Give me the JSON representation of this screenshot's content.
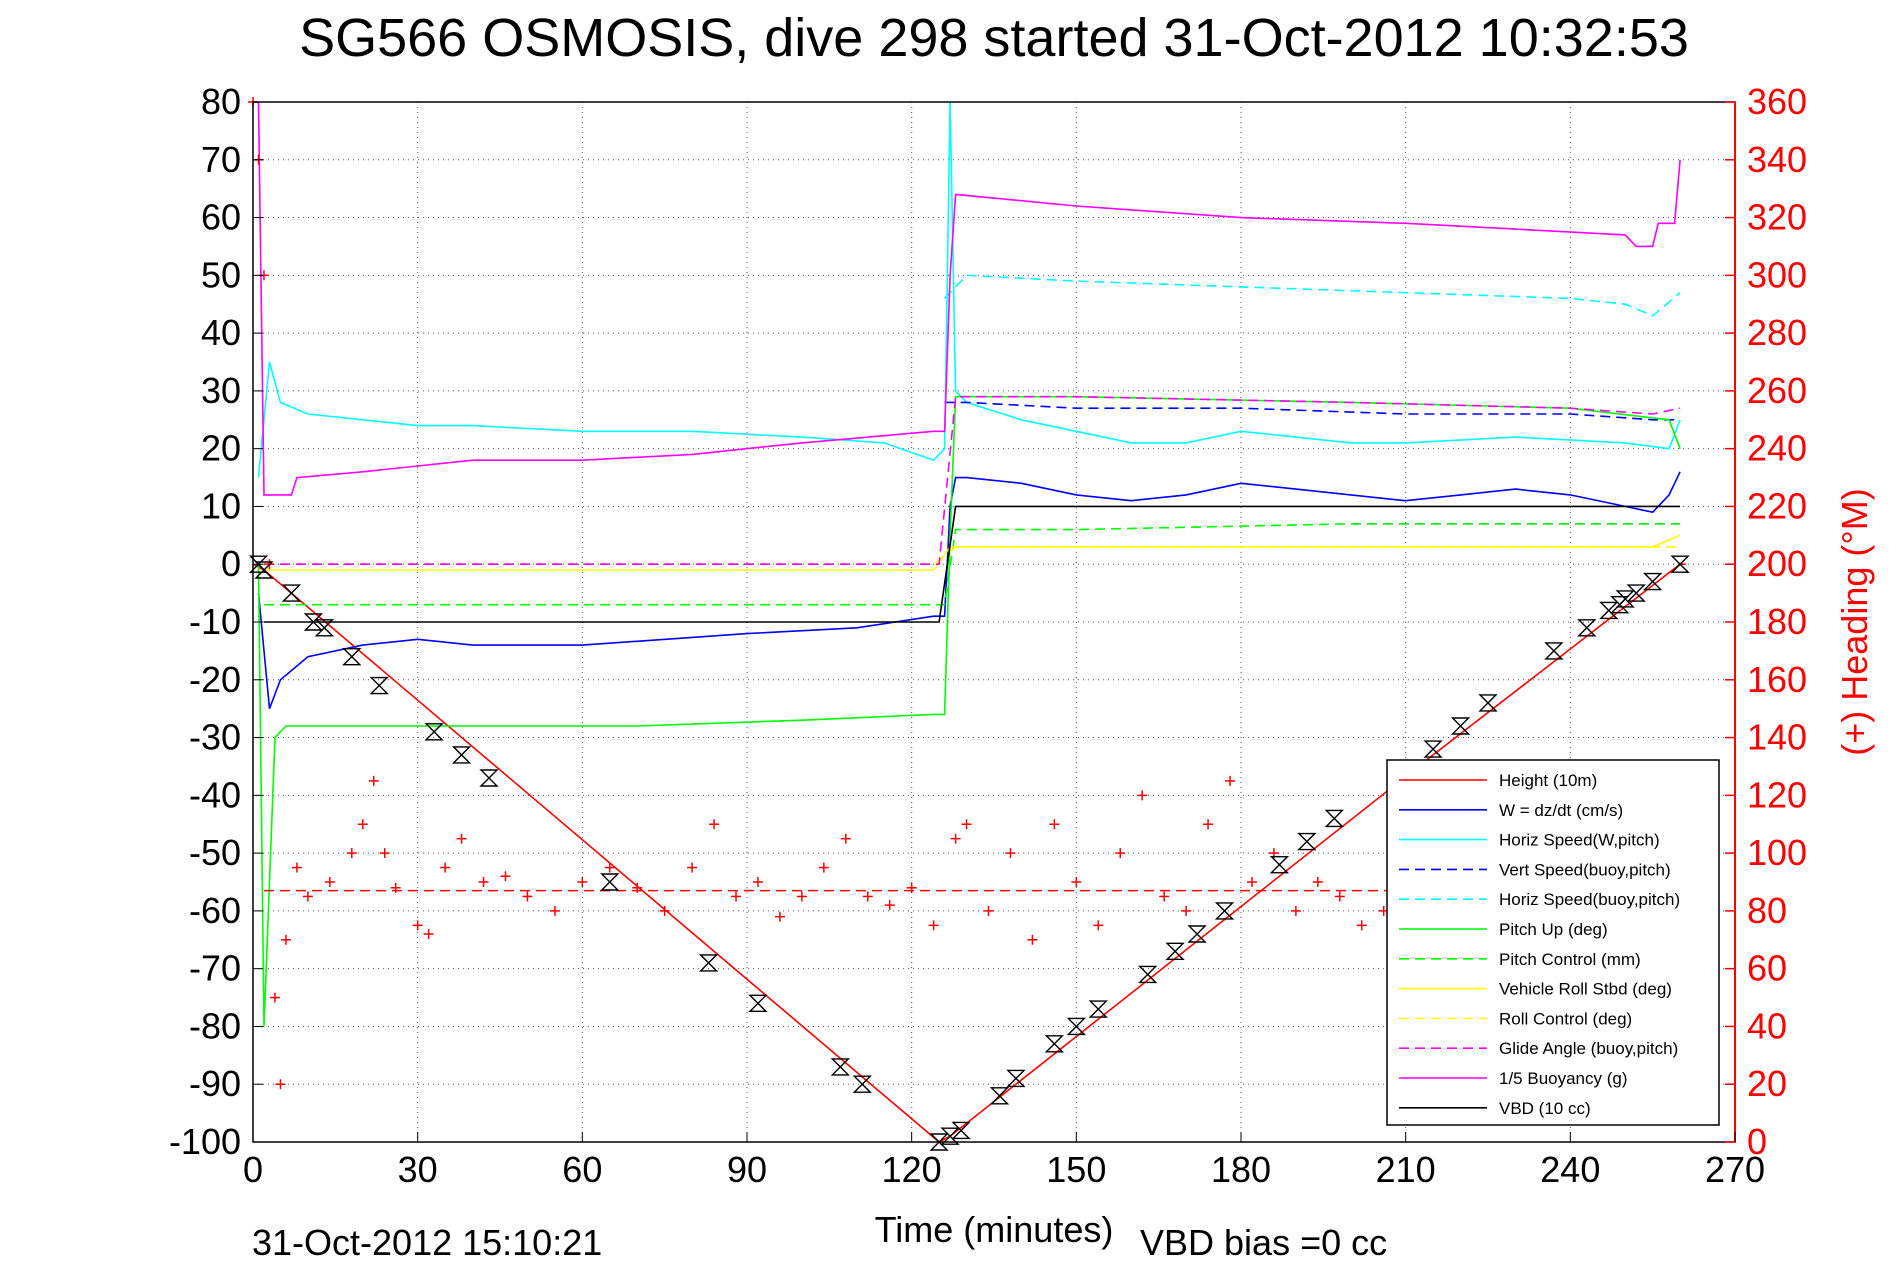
{
  "chart_data": {
    "type": "line",
    "title": "SG566 OSMOSIS, dive 298 started 31-Oct-2012 10:32:53",
    "xlabel": "Time (minutes)",
    "ylabel": "",
    "y2label": "(+) Heading (°M)",
    "footer_left": "31-Oct-2012 15:10:21",
    "footer_right": "VBD bias =0 cc",
    "xlim": [
      0,
      270
    ],
    "ylim": [
      -100,
      80
    ],
    "y2lim": [
      0,
      360
    ],
    "xticks": [
      0,
      30,
      60,
      90,
      120,
      150,
      180,
      210,
      240,
      270
    ],
    "yticks": [
      80,
      70,
      60,
      50,
      40,
      30,
      20,
      10,
      0,
      -10,
      -20,
      -30,
      -40,
      -50,
      -60,
      -70,
      -80,
      -90,
      -100
    ],
    "y2ticks": [
      360,
      340,
      320,
      300,
      280,
      260,
      240,
      220,
      200,
      180,
      160,
      140,
      120,
      100,
      80,
      60,
      40,
      20,
      0
    ],
    "grid": true,
    "legend_position": "bottom-right",
    "colors": {
      "height": "#ff0000",
      "w": "#0000ff",
      "horiz_speed": "#00ffff",
      "pitch": "#00ff00",
      "roll": "#ffff00",
      "glide": "#ff00ff",
      "buoyancy": "#ff00ff",
      "vbd": "#000000",
      "right_axis": "#ff0000"
    },
    "legend": [
      "Height (10m)",
      "W = dz/dt (cm/s)",
      "Horiz Speed(W,pitch)",
      "Vert Speed(buoy,pitch)",
      "Horiz Speed(buoy,pitch)",
      "Pitch Up (deg)",
      "Pitch Control (mm)",
      "Vehicle Roll Stbd (deg)",
      "Roll Control (deg)",
      "Glide Angle (buoy,pitch)",
      "1/5 Buoyancy (g)",
      "VBD (10 cc)"
    ],
    "series": [
      {
        "name": "Height (10m)",
        "style": "solid",
        "color": "#ff0000",
        "x": [
          0,
          2,
          125,
          127,
          215,
          260,
          261
        ],
        "y": [
          0,
          -1,
          -100,
          -99,
          -33,
          0,
          0
        ]
      },
      {
        "name": "W = dz/dt (cm/s)",
        "style": "solid",
        "color": "#0000ff",
        "x": [
          1,
          3,
          5,
          10,
          20,
          30,
          40,
          60,
          90,
          110,
          124,
          126,
          127,
          128,
          130,
          140,
          150,
          160,
          170,
          180,
          190,
          200,
          210,
          220,
          230,
          240,
          250,
          255,
          258,
          260
        ],
        "y": [
          -5,
          -25,
          -20,
          -16,
          -14,
          -13,
          -14,
          -14,
          -12,
          -11,
          -9,
          -9,
          10,
          15,
          15,
          14,
          12,
          11,
          12,
          14,
          13,
          12,
          11,
          12,
          13,
          12,
          10,
          9,
          12,
          16
        ]
      },
      {
        "name": "Horiz Speed(W,pitch)",
        "style": "solid",
        "color": "#00ffff",
        "x": [
          1,
          3,
          5,
          10,
          20,
          30,
          40,
          60,
          80,
          100,
          115,
          124,
          126,
          127,
          128,
          130,
          140,
          150,
          160,
          170,
          180,
          190,
          200,
          210,
          230,
          250,
          258,
          260
        ],
        "y": [
          15,
          35,
          28,
          26,
          25,
          24,
          24,
          23,
          23,
          22,
          21,
          18,
          20,
          80,
          30,
          28,
          25,
          23,
          21,
          21,
          23,
          22,
          21,
          21,
          22,
          21,
          20,
          25
        ]
      },
      {
        "name": "Vert Speed(buoy,pitch)",
        "style": "dashed",
        "color": "#0000ff",
        "x": [
          126,
          130,
          150,
          180,
          210,
          240,
          255,
          260
        ],
        "y": [
          28,
          28,
          27,
          27,
          26,
          26,
          25,
          25
        ]
      },
      {
        "name": "Horiz Speed(buoy,pitch)",
        "style": "dashed",
        "color": "#00ffff",
        "x": [
          126,
          130,
          150,
          180,
          210,
          240,
          250,
          255,
          260
        ],
        "y": [
          46,
          50,
          49,
          48,
          47,
          46,
          45,
          43,
          47
        ]
      },
      {
        "name": "Pitch Up (deg)",
        "style": "solid",
        "color": "#00ff00",
        "x": [
          1,
          2,
          4,
          6,
          10,
          20,
          40,
          70,
          100,
          124,
          126,
          127,
          128,
          150,
          200,
          240,
          258,
          260
        ],
        "y": [
          0,
          -80,
          -30,
          -28,
          -28,
          -28,
          -28,
          -28,
          -27,
          -26,
          -26,
          5,
          29,
          29,
          28,
          27,
          25,
          20
        ]
      },
      {
        "name": "Pitch Control (mm)",
        "style": "dashed",
        "color": "#00ff00",
        "x": [
          2,
          10,
          60,
          124,
          126,
          128,
          150,
          200,
          260
        ],
        "y": [
          -7,
          -7,
          -7,
          -7,
          -7,
          6,
          6,
          7,
          7
        ]
      },
      {
        "name": "Vehicle Roll Stbd (deg)",
        "style": "solid",
        "color": "#ffff00",
        "x": [
          2,
          10,
          50,
          100,
          124,
          127,
          128,
          150,
          200,
          255,
          260
        ],
        "y": [
          -1,
          -1,
          -1,
          -1,
          -1,
          3,
          3,
          3,
          3,
          3,
          5
        ]
      },
      {
        "name": "Roll Control (deg)",
        "style": "dashed",
        "color": "#ffff00",
        "x": [
          2,
          124,
          128,
          260
        ],
        "y": [
          0,
          0,
          3,
          3
        ]
      },
      {
        "name": "Glide Angle (buoy,pitch)",
        "style": "dashed",
        "color": "#ff00ff",
        "x": [
          2,
          125,
          128,
          150,
          200,
          240,
          255,
          260
        ],
        "y": [
          0,
          0,
          29,
          29,
          28,
          27,
          26,
          27
        ]
      },
      {
        "name": "1/5 Buoyancy (g)",
        "style": "solid",
        "color": "#ff00ff",
        "x": [
          1,
          2,
          7,
          8,
          20,
          40,
          60,
          80,
          100,
          124,
          126,
          127,
          128,
          150,
          180,
          210,
          250,
          252,
          255,
          256,
          259,
          260
        ],
        "y": [
          80,
          12,
          12,
          15,
          16,
          18,
          18,
          19,
          21,
          23,
          23,
          50,
          64,
          62,
          60,
          59,
          57,
          55,
          55,
          59,
          59,
          70
        ]
      },
      {
        "name": "VBD (10 cc)",
        "style": "solid",
        "color": "#000000",
        "x": [
          2,
          5,
          60,
          124,
          125,
          128,
          200,
          260
        ],
        "y": [
          -10,
          -10,
          -10,
          -10,
          -10,
          10,
          10,
          10
        ]
      }
    ],
    "heading_series": {
      "name": "Heading",
      "marker": "+",
      "color": "#ff0000",
      "mean_heading": 87,
      "x": [
        0,
        1,
        2,
        3,
        4,
        5,
        6,
        8,
        10,
        14,
        18,
        20,
        22,
        24,
        26,
        30,
        32,
        35,
        38,
        42,
        46,
        50,
        55,
        60,
        65,
        70,
        75,
        80,
        84,
        88,
        92,
        96,
        100,
        104,
        108,
        112,
        116,
        120,
        124,
        128,
        130,
        134,
        138,
        142,
        146,
        150,
        154,
        158,
        162,
        166,
        170,
        174,
        178,
        182,
        186,
        190,
        194,
        198,
        202,
        206,
        210
      ],
      "y": [
        360,
        340,
        300,
        200,
        50,
        20,
        70,
        95,
        85,
        90,
        100,
        110,
        125,
        100,
        88,
        75,
        72,
        95,
        105,
        90,
        92,
        85,
        80,
        90,
        95,
        88,
        80,
        95,
        110,
        85,
        90,
        78,
        85,
        95,
        105,
        85,
        82,
        88,
        75,
        105,
        110,
        80,
        100,
        70,
        110,
        90,
        75,
        100,
        120,
        85,
        80,
        110,
        125,
        90,
        100,
        80,
        90,
        85,
        75,
        80,
        90
      ]
    },
    "markers": {
      "shape": "hourglass",
      "color": "#000000",
      "x": [
        1,
        2,
        7,
        11,
        13,
        18,
        23,
        33,
        38,
        43,
        65,
        83,
        92,
        107,
        111,
        125,
        127,
        129,
        136,
        139,
        146,
        150,
        154,
        163,
        168,
        172,
        177,
        187,
        192,
        197,
        215,
        220,
        225,
        237,
        243,
        247,
        249,
        250,
        252,
        255,
        260
      ],
      "y": [
        0,
        -1,
        -5,
        -10,
        -11,
        -16,
        -21,
        -29,
        -33,
        -37,
        -55,
        -69,
        -76,
        -87,
        -90,
        -100,
        -99,
        -98,
        -92,
        -89,
        -83,
        -80,
        -77,
        -71,
        -67,
        -64,
        -60,
        -52,
        -48,
        -44,
        -32,
        -28,
        -24,
        -15,
        -11,
        -8,
        -7,
        -6,
        -5,
        -3,
        0
      ]
    }
  }
}
